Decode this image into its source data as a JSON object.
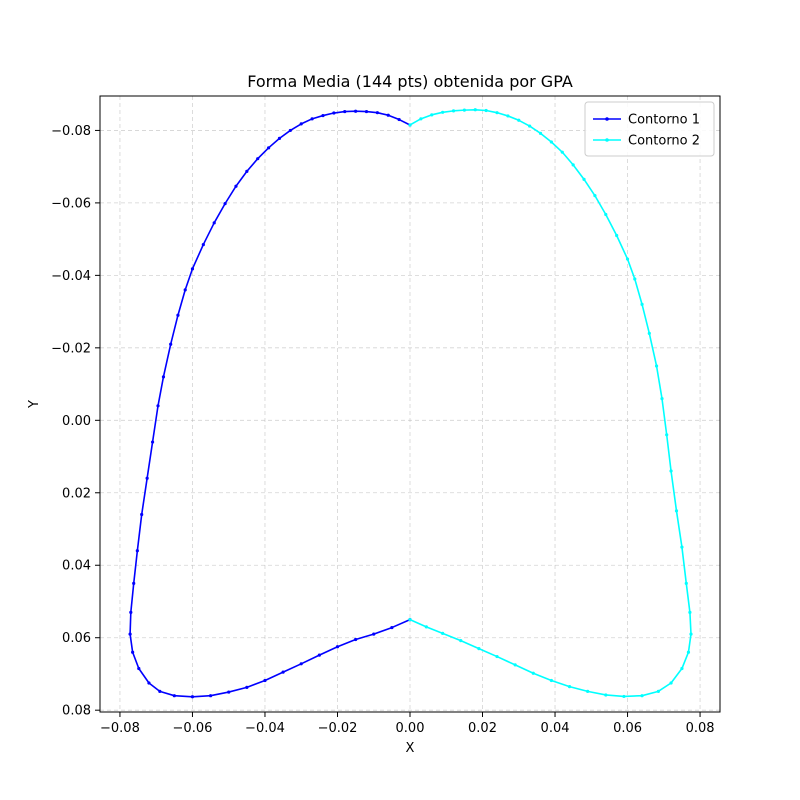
{
  "chart_data": {
    "type": "line",
    "title": "Forma Media (144 pts) obtenida por GPA",
    "xlabel": "X",
    "ylabel": "Y",
    "xlim": [
      -0.0855,
      0.0855
    ],
    "ylim": [
      0.0805,
      -0.0895
    ],
    "y_inverted": true,
    "grid": true,
    "legend_position": "top-right",
    "xticks": [
      -0.08,
      -0.06,
      -0.04,
      -0.02,
      0.0,
      0.02,
      0.04,
      0.06,
      0.08
    ],
    "xtick_labels": [
      "−0.08",
      "−0.06",
      "−0.04",
      "−0.02",
      "0.00",
      "0.02",
      "0.04",
      "0.06",
      "0.08"
    ],
    "yticks": [
      -0.08,
      -0.06,
      -0.04,
      -0.02,
      0.0,
      0.02,
      0.04,
      0.06,
      0.08
    ],
    "ytick_labels": [
      "−0.08",
      "−0.06",
      "−0.04",
      "−0.02",
      "0.00",
      "0.02",
      "0.04",
      "0.06",
      "0.08"
    ],
    "series": [
      {
        "name": "Contorno 1",
        "color": "#0000ff",
        "points": [
          [
            0.0,
            -0.0815
          ],
          [
            -0.003,
            -0.083
          ],
          [
            -0.006,
            -0.0842
          ],
          [
            -0.009,
            -0.0849
          ],
          [
            -0.012,
            -0.0852
          ],
          [
            -0.015,
            -0.0853
          ],
          [
            -0.018,
            -0.0852
          ],
          [
            -0.021,
            -0.0848
          ],
          [
            -0.024,
            -0.0841
          ],
          [
            -0.027,
            -0.0832
          ],
          [
            -0.03,
            -0.0818
          ],
          [
            -0.033,
            -0.08
          ],
          [
            -0.036,
            -0.0778
          ],
          [
            -0.039,
            -0.0752
          ],
          [
            -0.042,
            -0.0722
          ],
          [
            -0.045,
            -0.0687
          ],
          [
            -0.048,
            -0.0646
          ],
          [
            -0.051,
            -0.0598
          ],
          [
            -0.054,
            -0.0545
          ],
          [
            -0.057,
            -0.0485
          ],
          [
            -0.06,
            -0.0418
          ],
          [
            -0.062,
            -0.036
          ],
          [
            -0.064,
            -0.029
          ],
          [
            -0.066,
            -0.021
          ],
          [
            -0.068,
            -0.012
          ],
          [
            -0.0695,
            -0.004
          ],
          [
            -0.071,
            0.006
          ],
          [
            -0.0725,
            0.016
          ],
          [
            -0.074,
            0.026
          ],
          [
            -0.0752,
            0.036
          ],
          [
            -0.0762,
            0.045
          ],
          [
            -0.077,
            0.053
          ],
          [
            -0.0772,
            0.059
          ],
          [
            -0.0765,
            0.064
          ],
          [
            -0.0748,
            0.0685
          ],
          [
            -0.072,
            0.0725
          ],
          [
            -0.069,
            0.0748
          ],
          [
            -0.065,
            0.076
          ],
          [
            -0.06,
            0.0763
          ],
          [
            -0.055,
            0.076
          ],
          [
            -0.05,
            0.075
          ],
          [
            -0.045,
            0.0737
          ],
          [
            -0.04,
            0.0718
          ],
          [
            -0.035,
            0.0695
          ],
          [
            -0.03,
            0.0672
          ],
          [
            -0.025,
            0.0648
          ],
          [
            -0.02,
            0.0625
          ],
          [
            -0.015,
            0.0605
          ],
          [
            -0.01,
            0.059
          ],
          [
            -0.005,
            0.0572
          ],
          [
            0.0,
            0.055
          ]
        ]
      },
      {
        "name": "Contorno 2",
        "color": "#00ffff",
        "points": [
          [
            0.0,
            -0.0815
          ],
          [
            0.003,
            -0.0832
          ],
          [
            0.006,
            -0.0843
          ],
          [
            0.009,
            -0.085
          ],
          [
            0.012,
            -0.0854
          ],
          [
            0.015,
            -0.0856
          ],
          [
            0.018,
            -0.0857
          ],
          [
            0.021,
            -0.0855
          ],
          [
            0.024,
            -0.0849
          ],
          [
            0.027,
            -0.084
          ],
          [
            0.03,
            -0.0828
          ],
          [
            0.033,
            -0.0812
          ],
          [
            0.036,
            -0.0792
          ],
          [
            0.039,
            -0.0768
          ],
          [
            0.042,
            -0.074
          ],
          [
            0.045,
            -0.0705
          ],
          [
            0.048,
            -0.0665
          ],
          [
            0.051,
            -0.062
          ],
          [
            0.054,
            -0.0568
          ],
          [
            0.057,
            -0.051
          ],
          [
            0.06,
            -0.0445
          ],
          [
            0.062,
            -0.039
          ],
          [
            0.064,
            -0.032
          ],
          [
            0.066,
            -0.024
          ],
          [
            0.068,
            -0.015
          ],
          [
            0.0695,
            -0.006
          ],
          [
            0.0708,
            0.004
          ],
          [
            0.072,
            0.014
          ],
          [
            0.0735,
            0.025
          ],
          [
            0.075,
            0.035
          ],
          [
            0.0762,
            0.045
          ],
          [
            0.0772,
            0.053
          ],
          [
            0.0775,
            0.059
          ],
          [
            0.0768,
            0.064
          ],
          [
            0.075,
            0.0685
          ],
          [
            0.072,
            0.0725
          ],
          [
            0.0685,
            0.0748
          ],
          [
            0.064,
            0.076
          ],
          [
            0.059,
            0.0762
          ],
          [
            0.054,
            0.0758
          ],
          [
            0.049,
            0.0748
          ],
          [
            0.044,
            0.0735
          ],
          [
            0.039,
            0.0718
          ],
          [
            0.034,
            0.0698
          ],
          [
            0.029,
            0.0675
          ],
          [
            0.024,
            0.0652
          ],
          [
            0.019,
            0.063
          ],
          [
            0.014,
            0.0608
          ],
          [
            0.009,
            0.0588
          ],
          [
            0.0045,
            0.057
          ],
          [
            0.0,
            0.055
          ]
        ]
      }
    ]
  }
}
